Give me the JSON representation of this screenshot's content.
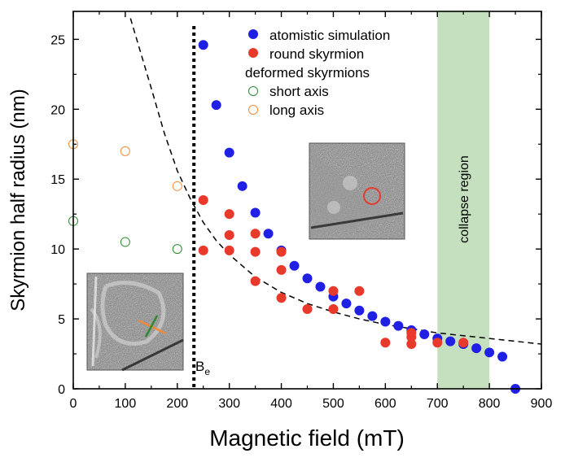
{
  "chart_data": {
    "type": "scatter",
    "xlabel": "Magnetic field (mT)",
    "ylabel": "Skyrmion half radius (nm)",
    "xlim": [
      0,
      900
    ],
    "ylim": [
      0,
      27
    ],
    "xticks": [
      0,
      100,
      200,
      300,
      400,
      500,
      600,
      700,
      800,
      900
    ],
    "yticks": [
      0,
      5,
      10,
      15,
      20,
      25
    ],
    "grid": false,
    "legend_position": "top-right",
    "legend_heading": "deformed skyrmions",
    "series": [
      {
        "name": "atomistic simulation",
        "marker": "filled-circle",
        "color": "#1f1fe6",
        "points": [
          [
            250,
            24.6
          ],
          [
            275,
            20.3
          ],
          [
            300,
            16.9
          ],
          [
            325,
            14.5
          ],
          [
            350,
            12.6
          ],
          [
            375,
            11.1
          ],
          [
            400,
            9.9
          ],
          [
            425,
            8.8
          ],
          [
            450,
            7.9
          ],
          [
            475,
            7.3
          ],
          [
            500,
            6.6
          ],
          [
            525,
            6.1
          ],
          [
            550,
            5.6
          ],
          [
            575,
            5.2
          ],
          [
            600,
            4.8
          ],
          [
            625,
            4.5
          ],
          [
            650,
            4.2
          ],
          [
            675,
            3.9
          ],
          [
            700,
            3.6
          ],
          [
            725,
            3.4
          ],
          [
            750,
            3.2
          ],
          [
            775,
            2.9
          ],
          [
            800,
            2.6
          ],
          [
            825,
            2.3
          ],
          [
            850,
            0.0
          ]
        ]
      },
      {
        "name": "round skyrmion",
        "marker": "filled-circle",
        "color": "#e8392a",
        "points": [
          [
            250,
            13.5
          ],
          [
            250,
            9.9
          ],
          [
            300,
            12.5
          ],
          [
            300,
            11.0
          ],
          [
            300,
            9.9
          ],
          [
            350,
            11.1
          ],
          [
            350,
            9.8
          ],
          [
            350,
            7.7
          ],
          [
            400,
            9.8
          ],
          [
            400,
            8.5
          ],
          [
            400,
            6.5
          ],
          [
            450,
            5.7
          ],
          [
            500,
            7.0
          ],
          [
            500,
            5.7
          ],
          [
            550,
            7.0
          ],
          [
            600,
            3.3
          ],
          [
            650,
            4.0
          ],
          [
            650,
            3.7
          ],
          [
            650,
            3.2
          ],
          [
            700,
            3.3
          ],
          [
            750,
            3.3
          ]
        ]
      },
      {
        "name": "short axis",
        "marker": "open-circle",
        "color": "#2e8a2e",
        "points": [
          [
            0,
            12.0
          ],
          [
            100,
            10.5
          ],
          [
            200,
            10.0
          ]
        ]
      },
      {
        "name": "long axis",
        "marker": "open-circle",
        "color": "#f08a3a",
        "points": [
          [
            0,
            17.5
          ],
          [
            100,
            17.0
          ],
          [
            200,
            14.5
          ]
        ]
      }
    ],
    "fit_curve": {
      "style": "dashed",
      "color": "#000000",
      "points": [
        [
          110,
          26.5
        ],
        [
          130,
          24.0
        ],
        [
          150,
          21.5
        ],
        [
          175,
          18.3
        ],
        [
          200,
          15.6
        ],
        [
          225,
          13.6
        ],
        [
          250,
          11.9
        ],
        [
          275,
          10.6
        ],
        [
          300,
          9.6
        ],
        [
          350,
          8.0
        ],
        [
          400,
          6.9
        ],
        [
          450,
          6.1
        ],
        [
          500,
          5.5
        ],
        [
          550,
          5.0
        ],
        [
          600,
          4.6
        ],
        [
          650,
          4.3
        ],
        [
          700,
          4.0
        ],
        [
          750,
          3.8
        ],
        [
          800,
          3.6
        ],
        [
          850,
          3.4
        ],
        [
          900,
          3.2
        ]
      ]
    },
    "vertical_line": {
      "x": 232,
      "style": "dotted",
      "label": "B",
      "label_subscript": "e"
    },
    "shaded_region": {
      "x_from": 700,
      "x_to": 800,
      "color": "#c5e0be",
      "label": "collapse region"
    },
    "insets": [
      {
        "name": "deformed-skyrmion-micrograph",
        "marker_colors": [
          "#2e8a2e",
          "#f08a3a"
        ]
      },
      {
        "name": "round-skyrmion-micrograph",
        "marker_color": "#e8392a"
      }
    ]
  }
}
